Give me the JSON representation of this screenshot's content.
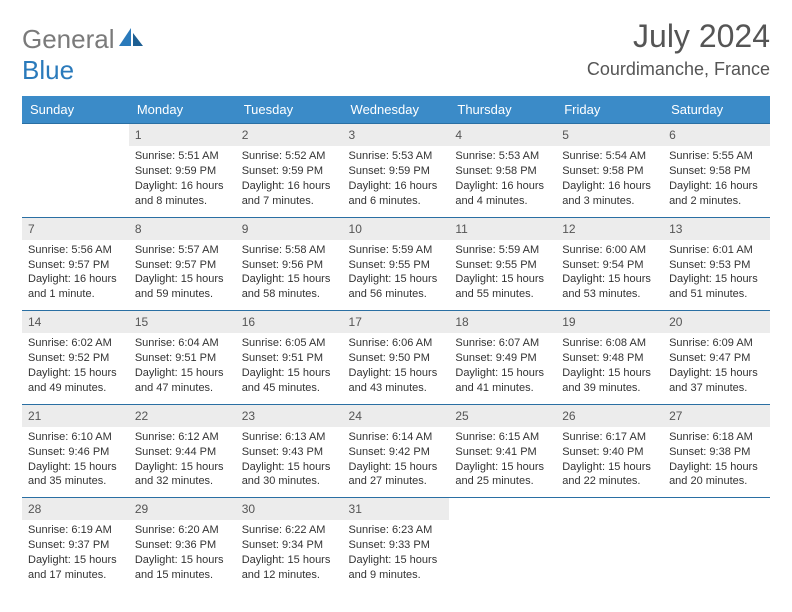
{
  "brand": {
    "first": "General",
    "second": "Blue"
  },
  "monthYear": "July 2024",
  "location": "Courdimanche, France",
  "colors": {
    "header_bg": "#3b8bc8",
    "daynum_bg": "#ececec",
    "rule": "#2a6fa3",
    "text": "#333333"
  },
  "typography": {
    "month_fontsize": 32,
    "location_fontsize": 18,
    "header_fontsize": 13,
    "body_fontsize": 11
  },
  "table": {
    "columns": 7,
    "rows": 5
  },
  "dayNames": [
    "Sunday",
    "Monday",
    "Tuesday",
    "Wednesday",
    "Thursday",
    "Friday",
    "Saturday"
  ],
  "days": [
    {
      "n": "",
      "sr": "",
      "ss": "",
      "dl": ""
    },
    {
      "n": "1",
      "sr": "5:51 AM",
      "ss": "9:59 PM",
      "dl": "16 hours and 8 minutes."
    },
    {
      "n": "2",
      "sr": "5:52 AM",
      "ss": "9:59 PM",
      "dl": "16 hours and 7 minutes."
    },
    {
      "n": "3",
      "sr": "5:53 AM",
      "ss": "9:59 PM",
      "dl": "16 hours and 6 minutes."
    },
    {
      "n": "4",
      "sr": "5:53 AM",
      "ss": "9:58 PM",
      "dl": "16 hours and 4 minutes."
    },
    {
      "n": "5",
      "sr": "5:54 AM",
      "ss": "9:58 PM",
      "dl": "16 hours and 3 minutes."
    },
    {
      "n": "6",
      "sr": "5:55 AM",
      "ss": "9:58 PM",
      "dl": "16 hours and 2 minutes."
    },
    {
      "n": "7",
      "sr": "5:56 AM",
      "ss": "9:57 PM",
      "dl": "16 hours and 1 minute."
    },
    {
      "n": "8",
      "sr": "5:57 AM",
      "ss": "9:57 PM",
      "dl": "15 hours and 59 minutes."
    },
    {
      "n": "9",
      "sr": "5:58 AM",
      "ss": "9:56 PM",
      "dl": "15 hours and 58 minutes."
    },
    {
      "n": "10",
      "sr": "5:59 AM",
      "ss": "9:55 PM",
      "dl": "15 hours and 56 minutes."
    },
    {
      "n": "11",
      "sr": "5:59 AM",
      "ss": "9:55 PM",
      "dl": "15 hours and 55 minutes."
    },
    {
      "n": "12",
      "sr": "6:00 AM",
      "ss": "9:54 PM",
      "dl": "15 hours and 53 minutes."
    },
    {
      "n": "13",
      "sr": "6:01 AM",
      "ss": "9:53 PM",
      "dl": "15 hours and 51 minutes."
    },
    {
      "n": "14",
      "sr": "6:02 AM",
      "ss": "9:52 PM",
      "dl": "15 hours and 49 minutes."
    },
    {
      "n": "15",
      "sr": "6:04 AM",
      "ss": "9:51 PM",
      "dl": "15 hours and 47 minutes."
    },
    {
      "n": "16",
      "sr": "6:05 AM",
      "ss": "9:51 PM",
      "dl": "15 hours and 45 minutes."
    },
    {
      "n": "17",
      "sr": "6:06 AM",
      "ss": "9:50 PM",
      "dl": "15 hours and 43 minutes."
    },
    {
      "n": "18",
      "sr": "6:07 AM",
      "ss": "9:49 PM",
      "dl": "15 hours and 41 minutes."
    },
    {
      "n": "19",
      "sr": "6:08 AM",
      "ss": "9:48 PM",
      "dl": "15 hours and 39 minutes."
    },
    {
      "n": "20",
      "sr": "6:09 AM",
      "ss": "9:47 PM",
      "dl": "15 hours and 37 minutes."
    },
    {
      "n": "21",
      "sr": "6:10 AM",
      "ss": "9:46 PM",
      "dl": "15 hours and 35 minutes."
    },
    {
      "n": "22",
      "sr": "6:12 AM",
      "ss": "9:44 PM",
      "dl": "15 hours and 32 minutes."
    },
    {
      "n": "23",
      "sr": "6:13 AM",
      "ss": "9:43 PM",
      "dl": "15 hours and 30 minutes."
    },
    {
      "n": "24",
      "sr": "6:14 AM",
      "ss": "9:42 PM",
      "dl": "15 hours and 27 minutes."
    },
    {
      "n": "25",
      "sr": "6:15 AM",
      "ss": "9:41 PM",
      "dl": "15 hours and 25 minutes."
    },
    {
      "n": "26",
      "sr": "6:17 AM",
      "ss": "9:40 PM",
      "dl": "15 hours and 22 minutes."
    },
    {
      "n": "27",
      "sr": "6:18 AM",
      "ss": "9:38 PM",
      "dl": "15 hours and 20 minutes."
    },
    {
      "n": "28",
      "sr": "6:19 AM",
      "ss": "9:37 PM",
      "dl": "15 hours and 17 minutes."
    },
    {
      "n": "29",
      "sr": "6:20 AM",
      "ss": "9:36 PM",
      "dl": "15 hours and 15 minutes."
    },
    {
      "n": "30",
      "sr": "6:22 AM",
      "ss": "9:34 PM",
      "dl": "15 hours and 12 minutes."
    },
    {
      "n": "31",
      "sr": "6:23 AM",
      "ss": "9:33 PM",
      "dl": "15 hours and 9 minutes."
    },
    {
      "n": "",
      "sr": "",
      "ss": "",
      "dl": ""
    },
    {
      "n": "",
      "sr": "",
      "ss": "",
      "dl": ""
    },
    {
      "n": "",
      "sr": "",
      "ss": "",
      "dl": ""
    }
  ],
  "labels": {
    "sunrise": "Sunrise:",
    "sunset": "Sunset:",
    "daylight": "Daylight:"
  }
}
